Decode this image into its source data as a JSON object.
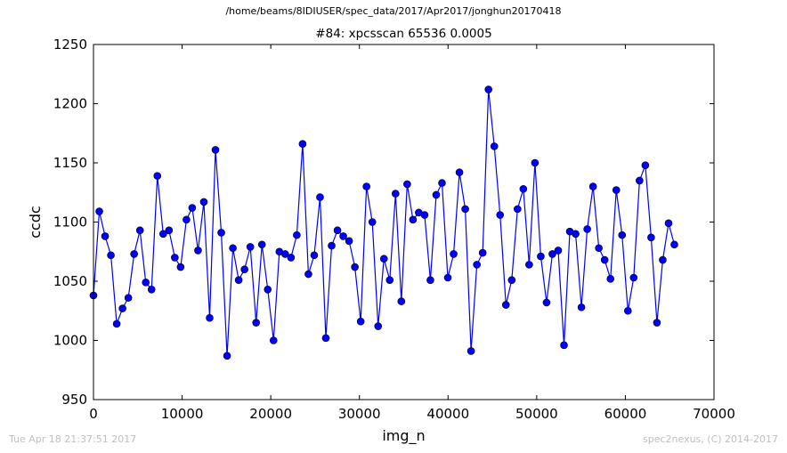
{
  "header": {
    "path": "/home/beams/8IDIUSER/spec_data/2017/Apr2017/jonghun20170418"
  },
  "footer": {
    "timestamp": "Tue Apr 18 21:37:51 2017",
    "credit": "spec2nexus, (C) 2014-2017"
  },
  "colors": {
    "line": "#0000ff",
    "marker": "#0000ff",
    "axes": "#000000",
    "footer_text": "#bfbfbf"
  },
  "chart_data": {
    "type": "line",
    "title": "#84: xpcsscan 65536 0.0005",
    "xlabel": "img_n",
    "ylabel": "ccdc",
    "xlim": [
      0,
      70000
    ],
    "ylim": [
      950,
      1250
    ],
    "xticks": [
      0,
      10000,
      20000,
      30000,
      40000,
      50000,
      60000,
      70000
    ],
    "yticks": [
      950,
      1000,
      1050,
      1100,
      1150,
      1200,
      1250
    ],
    "grid": false,
    "legend": "none",
    "markers": true,
    "series": [
      {
        "x": [
          0,
          656,
          1311,
          1966,
          2621,
          3277,
          3932,
          4587,
          5243,
          5898,
          6553,
          7208,
          7864,
          8519,
          9174,
          9830,
          10485,
          11140,
          11796,
          12451,
          13106,
          13761,
          14417,
          15072,
          15727,
          16383,
          17038,
          17693,
          18349,
          19004,
          19659,
          20314,
          20970,
          21625,
          22280,
          22936,
          23591,
          24246,
          24901,
          25557,
          26212,
          26867,
          27523,
          28178,
          28833,
          29489,
          30144,
          30799,
          31454,
          32110,
          32765,
          33420,
          34076,
          34731,
          35386,
          36042,
          36697,
          37352,
          38007,
          38663,
          39318,
          39973,
          40629,
          41284,
          41939,
          42595,
          43250,
          43905,
          44560,
          45216,
          45871,
          46526,
          47182,
          47837,
          48492,
          49148,
          49803,
          50458,
          51113,
          51769,
          52424,
          53079,
          53735,
          54390,
          55045,
          55701,
          56356,
          57011,
          57666,
          58322,
          58977,
          59632,
          60288,
          60943,
          61598,
          62253,
          62909,
          63564,
          64219,
          64875,
          65530
        ],
        "y": [
          1038,
          1109,
          1088,
          1072,
          1014,
          1027,
          1036,
          1073,
          1093,
          1049,
          1043,
          1139,
          1090,
          1093,
          1070,
          1062,
          1102,
          1112,
          1076,
          1117,
          1019,
          1161,
          1091,
          987,
          1078,
          1051,
          1060,
          1079,
          1015,
          1081,
          1043,
          1000,
          1075,
          1073,
          1070,
          1089,
          1166,
          1056,
          1072,
          1121,
          1002,
          1080,
          1093,
          1088,
          1084,
          1062,
          1016,
          1130,
          1100,
          1012,
          1069,
          1051,
          1124,
          1033,
          1132,
          1102,
          1108,
          1106,
          1051,
          1123,
          1133,
          1053,
          1073,
          1142,
          1111,
          991,
          1064,
          1074,
          1212,
          1164,
          1106,
          1030,
          1051,
          1111,
          1128,
          1064,
          1150,
          1071,
          1032,
          1073,
          1076,
          996,
          1092,
          1090,
          1028,
          1094,
          1130,
          1078,
          1068,
          1052,
          1127,
          1089,
          1025,
          1053,
          1135,
          1148,
          1087,
          1015,
          1068,
          1099,
          1081
        ]
      }
    ]
  }
}
